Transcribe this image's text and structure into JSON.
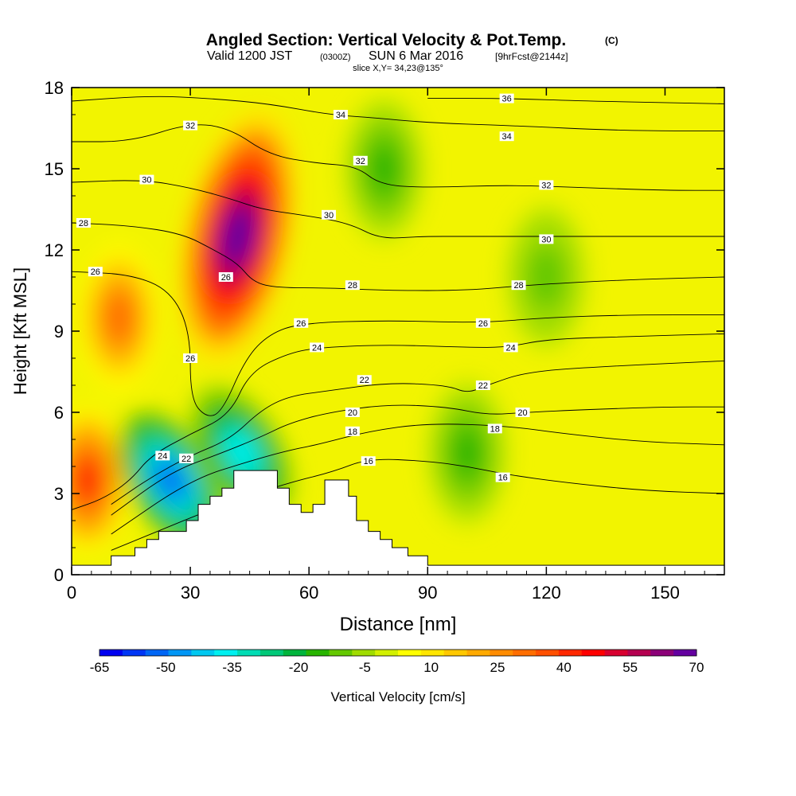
{
  "chart_data": {
    "type": "heatmap",
    "title": "Angled Section: Vertical Velocity & Pot.Temp.",
    "title_suffix": "(C)",
    "subtitle": {
      "valid": "Valid 1200 JST",
      "utc": "(0300Z)",
      "date": "SUN 6 Mar 2016",
      "forecast": "[9hrFcst@2144z]"
    },
    "slice_note": "slice X,Y= 34,23@135°",
    "xlabel": "Distance [nm]",
    "ylabel": "Height [Kft MSL]",
    "xlim": [
      0,
      165
    ],
    "ylim": [
      0,
      18
    ],
    "x_ticks": [
      0,
      30,
      60,
      90,
      120,
      150
    ],
    "y_ticks": [
      0,
      3,
      6,
      9,
      12,
      15,
      18
    ],
    "grid": false,
    "colorbar": {
      "label": "Vertical Velocity [cm/s]",
      "ticks": [
        -65,
        -50,
        -35,
        -20,
        -5,
        10,
        25,
        40,
        55,
        70
      ],
      "colors": [
        "#0000f0",
        "#0036f5",
        "#0066f5",
        "#0096f5",
        "#00c8f0",
        "#00f0f0",
        "#00dcb4",
        "#00c878",
        "#00b43c",
        "#28b400",
        "#64c800",
        "#a0dc00",
        "#d2f000",
        "#ffff00",
        "#ffe600",
        "#ffc800",
        "#ffaa00",
        "#ff8c00",
        "#ff6e00",
        "#ff5000",
        "#ff2800",
        "#ff0000",
        "#d80030",
        "#b40050",
        "#8c0078",
        "#6400a0"
      ]
    },
    "vertical_velocity_features": [
      {
        "kind": "updraft",
        "x": 42,
        "y": 12.5,
        "peak": 70
      },
      {
        "kind": "updraft",
        "x": 4,
        "y": 3.5,
        "peak": 40
      },
      {
        "kind": "updraft",
        "x": 12,
        "y": 9.5,
        "peak": 30
      },
      {
        "kind": "downdraft",
        "x": 25,
        "y": 3.5,
        "peak": -50
      },
      {
        "kind": "downdraft",
        "x": 43,
        "y": 4.5,
        "peak": -35
      },
      {
        "kind": "downdraft",
        "x": 79,
        "y": 15,
        "peak": -15
      },
      {
        "kind": "downdraft",
        "x": 100,
        "y": 4.5,
        "peak": -15
      },
      {
        "kind": "downdraft",
        "x": 120,
        "y": 11,
        "peak": -10
      }
    ],
    "terrain": [
      [
        0,
        0.35
      ],
      [
        10,
        0.35
      ],
      [
        10,
        0.7
      ],
      [
        16,
        0.7
      ],
      [
        16,
        1.0
      ],
      [
        19,
        1.0
      ],
      [
        19,
        1.3
      ],
      [
        22,
        1.3
      ],
      [
        22,
        1.6
      ],
      [
        29,
        1.6
      ],
      [
        29,
        2.0
      ],
      [
        32,
        2.0
      ],
      [
        32,
        2.6
      ],
      [
        35,
        2.6
      ],
      [
        35,
        2.9
      ],
      [
        38,
        2.9
      ],
      [
        38,
        3.2
      ],
      [
        41,
        3.2
      ],
      [
        41,
        3.85
      ],
      [
        52,
        3.85
      ],
      [
        52,
        3.2
      ],
      [
        55,
        3.2
      ],
      [
        55,
        2.6
      ],
      [
        58,
        2.6
      ],
      [
        58,
        2.3
      ],
      [
        61,
        2.3
      ],
      [
        61,
        2.6
      ],
      [
        64,
        2.6
      ],
      [
        64,
        3.5
      ],
      [
        70,
        3.5
      ],
      [
        70,
        2.9
      ],
      [
        72,
        2.9
      ],
      [
        72,
        2.0
      ],
      [
        75,
        2.0
      ],
      [
        75,
        1.6
      ],
      [
        78,
        1.6
      ],
      [
        78,
        1.3
      ],
      [
        81,
        1.3
      ],
      [
        81,
        1.0
      ],
      [
        85,
        1.0
      ],
      [
        85,
        0.7
      ],
      [
        90,
        0.7
      ],
      [
        90,
        0.35
      ],
      [
        165,
        0.35
      ]
    ],
    "contours": [
      {
        "value": 16,
        "points": [
          [
            10,
            0.9
          ],
          [
            40,
            2.7
          ],
          [
            55,
            3.4
          ],
          [
            66,
            3.8
          ],
          [
            75,
            4.3
          ],
          [
            90,
            4.2
          ],
          [
            100,
            4.0
          ],
          [
            110,
            3.7
          ],
          [
            125,
            3.4
          ],
          [
            145,
            3.1
          ],
          [
            165,
            3.0
          ]
        ]
      },
      {
        "value": 18,
        "points": [
          [
            10,
            1.5
          ],
          [
            30,
            3.5
          ],
          [
            45,
            4.2
          ],
          [
            55,
            4.6
          ],
          [
            62,
            4.8
          ],
          [
            75,
            5.3
          ],
          [
            90,
            5.6
          ],
          [
            110,
            5.5
          ],
          [
            125,
            5.2
          ],
          [
            145,
            4.9
          ],
          [
            165,
            4.8
          ]
        ]
      },
      {
        "value": 20,
        "points": [
          [
            10,
            2.2
          ],
          [
            25,
            3.8
          ],
          [
            38,
            4.5
          ],
          [
            48,
            5.1
          ],
          [
            55,
            5.6
          ],
          [
            65,
            6.0
          ],
          [
            80,
            6.3
          ],
          [
            95,
            6.2
          ],
          [
            105,
            5.9
          ],
          [
            115,
            6.0
          ],
          [
            130,
            6.1
          ],
          [
            150,
            6.2
          ],
          [
            165,
            6.2
          ]
        ]
      },
      {
        "value": 22,
        "points": [
          [
            10,
            2.6
          ],
          [
            20,
            3.6
          ],
          [
            30,
            4.4
          ],
          [
            40,
            5.0
          ],
          [
            48,
            6.1
          ],
          [
            55,
            6.6
          ],
          [
            65,
            6.8
          ],
          [
            80,
            7.1
          ],
          [
            95,
            7.0
          ],
          [
            100,
            6.7
          ],
          [
            105,
            7.0
          ],
          [
            115,
            7.5
          ],
          [
            135,
            7.7
          ],
          [
            165,
            7.9
          ]
        ]
      },
      {
        "value": 24,
        "points": [
          [
            0,
            2.4
          ],
          [
            8,
            2.8
          ],
          [
            15,
            3.5
          ],
          [
            20,
            4.4
          ],
          [
            30,
            5.2
          ],
          [
            40,
            5.9
          ],
          [
            45,
            7.5
          ],
          [
            55,
            8.2
          ],
          [
            63,
            8.4
          ],
          [
            80,
            8.5
          ],
          [
            100,
            8.4
          ],
          [
            110,
            8.4
          ],
          [
            120,
            8.7
          ],
          [
            140,
            8.8
          ],
          [
            165,
            8.9
          ]
        ]
      },
      {
        "value": 26,
        "points": [
          [
            0,
            11.2
          ],
          [
            15,
            11.1
          ],
          [
            25,
            10.5
          ],
          [
            30,
            9.0
          ],
          [
            30,
            6.5
          ],
          [
            34,
            5.8
          ],
          [
            38,
            6.0
          ],
          [
            44,
            8.0
          ],
          [
            50,
            8.9
          ],
          [
            58,
            9.3
          ],
          [
            80,
            9.4
          ],
          [
            103,
            9.3
          ],
          [
            120,
            9.5
          ],
          [
            140,
            9.6
          ],
          [
            165,
            9.6
          ]
        ]
      },
      {
        "value": 28,
        "points": [
          [
            0,
            13.0
          ],
          [
            15,
            12.9
          ],
          [
            28,
            12.6
          ],
          [
            36,
            12.0
          ],
          [
            42,
            11.5
          ],
          [
            46,
            10.8
          ],
          [
            52,
            10.6
          ],
          [
            65,
            10.6
          ],
          [
            80,
            10.5
          ],
          [
            100,
            10.5
          ],
          [
            115,
            10.7
          ],
          [
            140,
            10.9
          ],
          [
            165,
            11.0
          ]
        ]
      },
      {
        "value": 30,
        "points": [
          [
            0,
            14.5
          ],
          [
            18,
            14.6
          ],
          [
            30,
            14.3
          ],
          [
            40,
            13.9
          ],
          [
            48,
            13.5
          ],
          [
            58,
            13.3
          ],
          [
            70,
            13.0
          ],
          [
            78,
            12.4
          ],
          [
            88,
            12.5
          ],
          [
            100,
            12.5
          ],
          [
            115,
            12.5
          ],
          [
            140,
            12.5
          ],
          [
            165,
            12.5
          ]
        ]
      },
      {
        "value": 32,
        "points": [
          [
            0,
            16.0
          ],
          [
            15,
            16.0
          ],
          [
            30,
            16.7
          ],
          [
            40,
            16.5
          ],
          [
            50,
            15.5
          ],
          [
            62,
            15.2
          ],
          [
            72,
            15.1
          ],
          [
            78,
            14.4
          ],
          [
            90,
            14.3
          ],
          [
            110,
            14.4
          ],
          [
            130,
            14.3
          ],
          [
            150,
            14.2
          ],
          [
            165,
            14.2
          ]
        ]
      },
      {
        "value": 34,
        "points": [
          [
            0,
            17.5
          ],
          [
            20,
            17.7
          ],
          [
            35,
            17.6
          ],
          [
            50,
            17.4
          ],
          [
            65,
            17.0
          ],
          [
            75,
            16.9
          ],
          [
            90,
            16.7
          ],
          [
            110,
            16.6
          ],
          [
            140,
            16.4
          ],
          [
            165,
            16.4
          ]
        ]
      },
      {
        "value": 36,
        "points": [
          [
            90,
            17.6
          ],
          [
            110,
            17.6
          ],
          [
            130,
            17.5
          ],
          [
            165,
            17.4
          ]
        ]
      }
    ],
    "contour_labels": [
      {
        "text": "36",
        "x": 110,
        "y": 17.6
      },
      {
        "text": "34",
        "x": 68,
        "y": 17.0
      },
      {
        "text": "34",
        "x": 110,
        "y": 16.2
      },
      {
        "text": "32",
        "x": 30,
        "y": 16.6
      },
      {
        "text": "32",
        "x": 73,
        "y": 15.3
      },
      {
        "text": "32",
        "x": 120,
        "y": 14.4
      },
      {
        "text": "30",
        "x": 19,
        "y": 14.6
      },
      {
        "text": "30",
        "x": 65,
        "y": 13.3
      },
      {
        "text": "30",
        "x": 120,
        "y": 12.4
      },
      {
        "text": "28",
        "x": 3,
        "y": 13.0
      },
      {
        "text": "28",
        "x": 71,
        "y": 10.7
      },
      {
        "text": "28",
        "x": 113,
        "y": 10.7
      },
      {
        "text": "26",
        "x": 6,
        "y": 11.2
      },
      {
        "text": "26",
        "x": 58,
        "y": 9.3
      },
      {
        "text": "26",
        "x": 104,
        "y": 9.3
      },
      {
        "text": "26",
        "x": 30,
        "y": 8.0
      },
      {
        "text": "26",
        "x": 39,
        "y": 11.0
      },
      {
        "text": "24",
        "x": 62,
        "y": 8.4
      },
      {
        "text": "24",
        "x": 111,
        "y": 8.4
      },
      {
        "text": "24",
        "x": 23,
        "y": 4.4
      },
      {
        "text": "22",
        "x": 74,
        "y": 7.2
      },
      {
        "text": "22",
        "x": 104,
        "y": 7.0
      },
      {
        "text": "22",
        "x": 29,
        "y": 4.3
      },
      {
        "text": "20",
        "x": 71,
        "y": 6.0
      },
      {
        "text": "20",
        "x": 114,
        "y": 6.0
      },
      {
        "text": "18",
        "x": 71,
        "y": 5.3
      },
      {
        "text": "18",
        "x": 107,
        "y": 5.4
      },
      {
        "text": "16",
        "x": 75,
        "y": 4.2
      },
      {
        "text": "16",
        "x": 109,
        "y": 3.6
      }
    ]
  }
}
